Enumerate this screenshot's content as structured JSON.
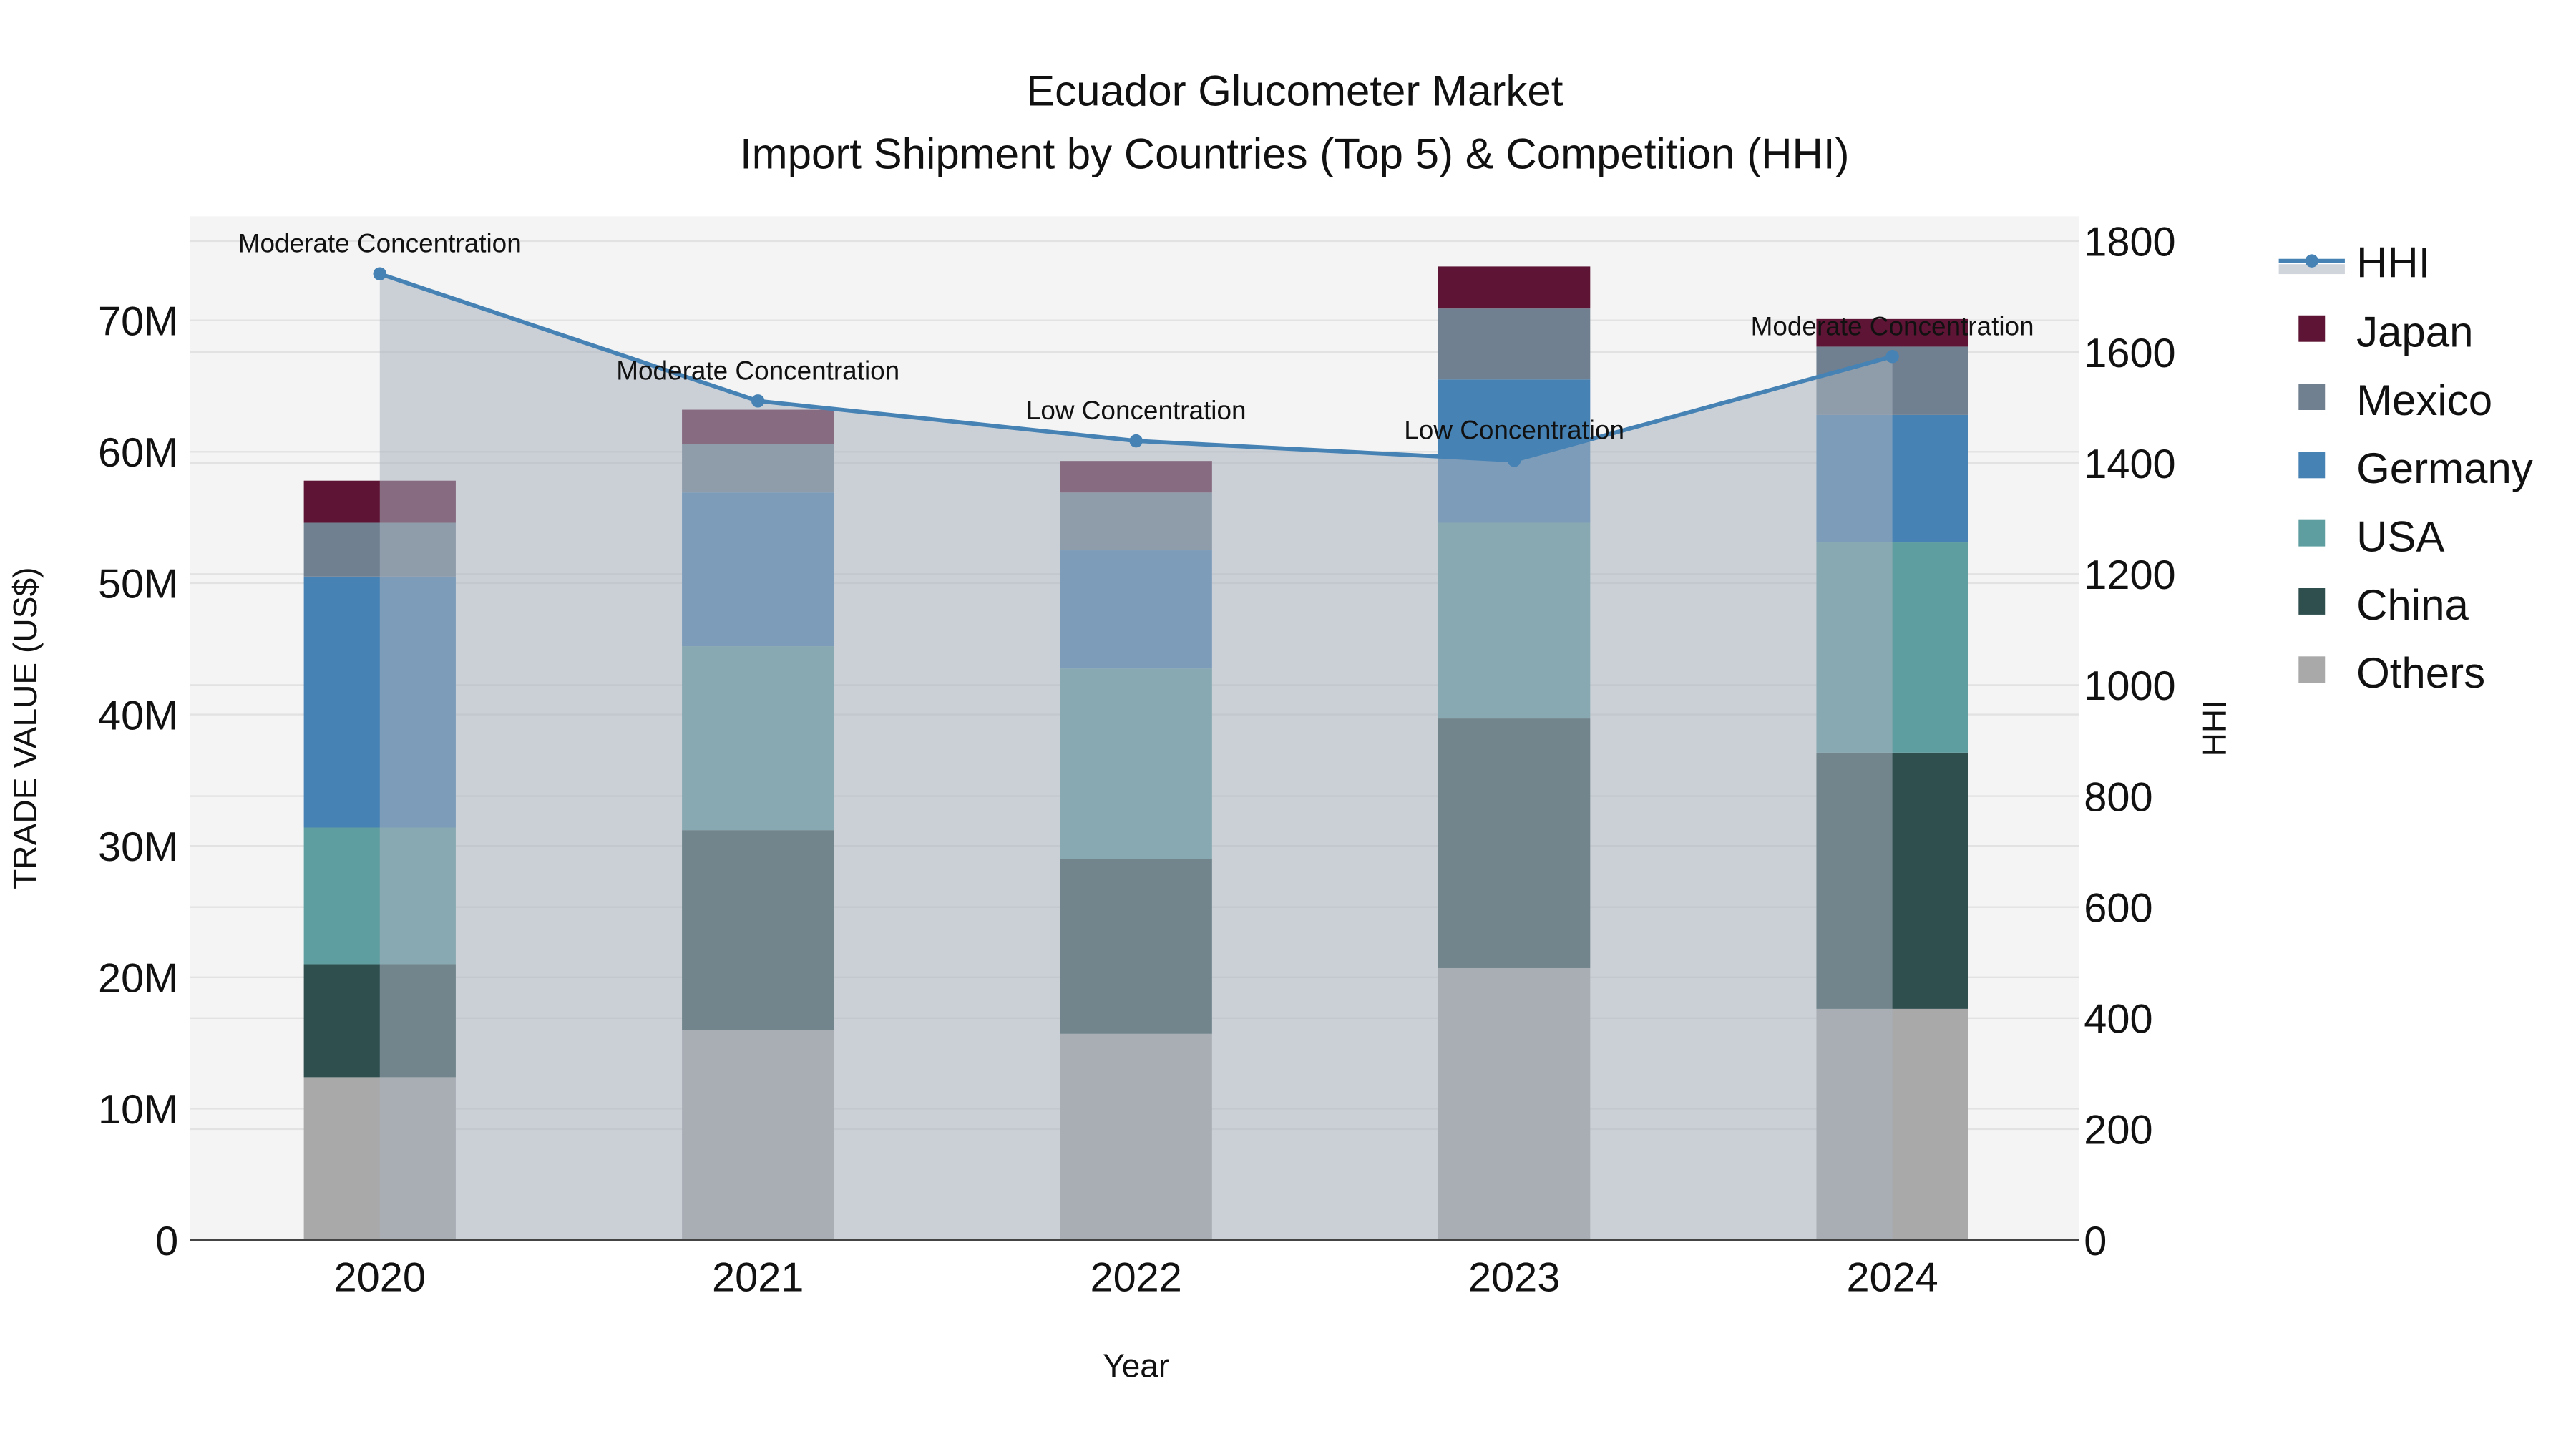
{
  "chart_data": {
    "type": "bar",
    "barmode": "stack",
    "title": "Ecuador Glucometer Market",
    "subtitle": "Import Shipment by Countries (Top 5) & Competition (HHI)",
    "xlabel": "Year",
    "ylabel": "TRADE VALUE (US$)",
    "y2label": "HHI",
    "categories": [
      "2020",
      "2021",
      "2022",
      "2023",
      "2024"
    ],
    "ylim": [
      0,
      78
    ],
    "y_ticks": [
      0,
      10,
      20,
      30,
      40,
      50,
      60,
      70
    ],
    "y_tick_labels": [
      "0",
      "10M",
      "20M",
      "30M",
      "40M",
      "50M",
      "60M",
      "70M"
    ],
    "y2lim": [
      0,
      1850
    ],
    "y2_ticks": [
      0,
      200,
      400,
      600,
      800,
      1000,
      1200,
      1400,
      1600,
      1800
    ],
    "y2_tick_labels": [
      "0",
      "200",
      "400",
      "600",
      "800",
      "1000",
      "1200",
      "1400",
      "1600",
      "1800"
    ],
    "units": "million US$",
    "series": [
      {
        "name": "Others",
        "color": "#a9a9a9",
        "values": [
          12.4,
          16.0,
          15.7,
          20.7,
          17.6
        ]
      },
      {
        "name": "China",
        "color": "#2f4f4f",
        "values": [
          8.6,
          15.2,
          13.3,
          19.0,
          19.5
        ]
      },
      {
        "name": "USA",
        "color": "#5f9ea0",
        "values": [
          10.4,
          14.0,
          14.5,
          14.9,
          16.0
        ]
      },
      {
        "name": "Germany",
        "color": "#4682b4",
        "values": [
          19.1,
          11.7,
          9.0,
          10.9,
          9.7
        ]
      },
      {
        "name": "Mexico",
        "color": "#708090",
        "values": [
          4.1,
          3.7,
          4.4,
          5.4,
          5.2
        ]
      },
      {
        "name": "Japan",
        "color": "#5e1434",
        "values": [
          3.2,
          2.6,
          2.4,
          3.2,
          2.1
        ]
      }
    ],
    "hhi": {
      "name": "HHI",
      "color": "#4682b4",
      "values": [
        1741,
        1512,
        1440,
        1405,
        1592
      ],
      "annotations": [
        "Moderate Concentration",
        "Moderate Concentration",
        "Low Concentration",
        "Low Concentration",
        "Moderate Concentration"
      ]
    },
    "legend": [
      "HHI",
      "Japan",
      "Mexico",
      "Germany",
      "USA",
      "China",
      "Others"
    ],
    "legend_position": "right",
    "grid": true
  }
}
